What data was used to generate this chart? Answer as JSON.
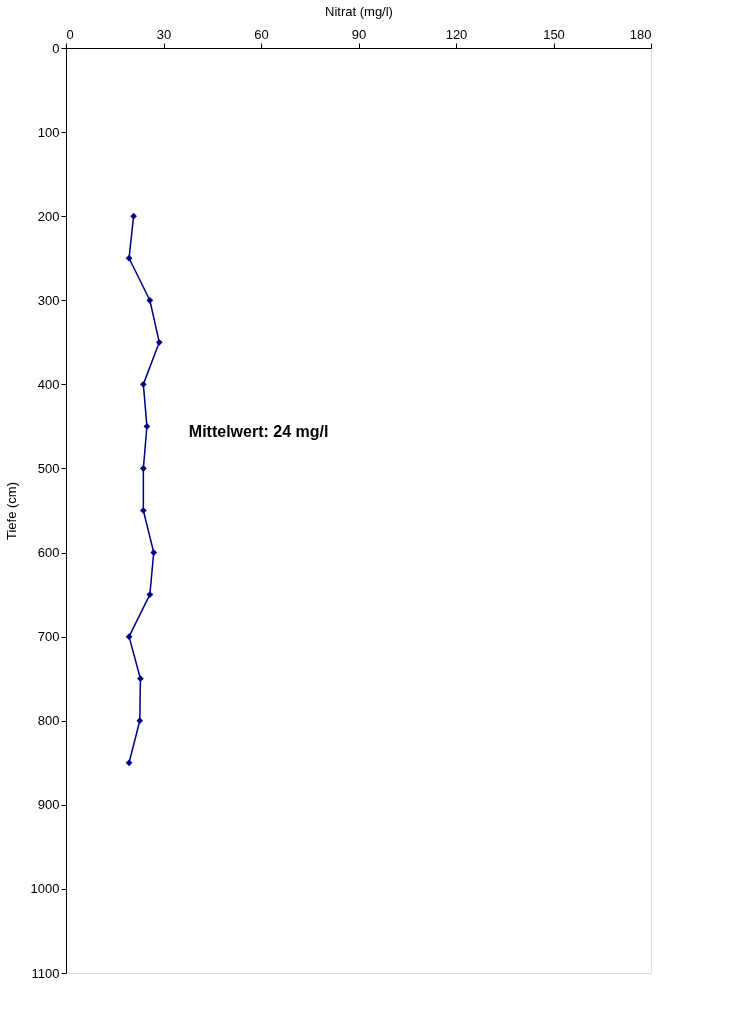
{
  "chart_data": {
    "type": "line",
    "xlabel": "Nitrat (mg/l)",
    "ylabel": "Tiefe (cm)",
    "x": [
      20.8,
      19.4,
      25.8,
      28.7,
      23.8,
      24.9,
      23.8,
      23.8,
      27,
      25.8,
      19.4,
      22.9,
      22.7,
      19.4
    ],
    "series": [
      {
        "color": "#000080",
        "values": [
          200,
          250,
          300,
          350,
          400,
          450,
          500,
          550,
          600,
          650,
          700,
          750,
          800,
          850
        ]
      }
    ],
    "xlim": [
      0,
      180
    ],
    "xticks": [
      0,
      30,
      60,
      90,
      120,
      150,
      180
    ],
    "ylim": [
      1100,
      0
    ],
    "yticks": [
      0,
      100,
      200,
      300,
      400,
      500,
      600,
      700,
      800,
      900,
      1000,
      1100
    ],
    "marker": "diamond",
    "line_style": "solid",
    "grid": false,
    "annotations": [
      "Mittelwert: 24 mg/l"
    ]
  }
}
